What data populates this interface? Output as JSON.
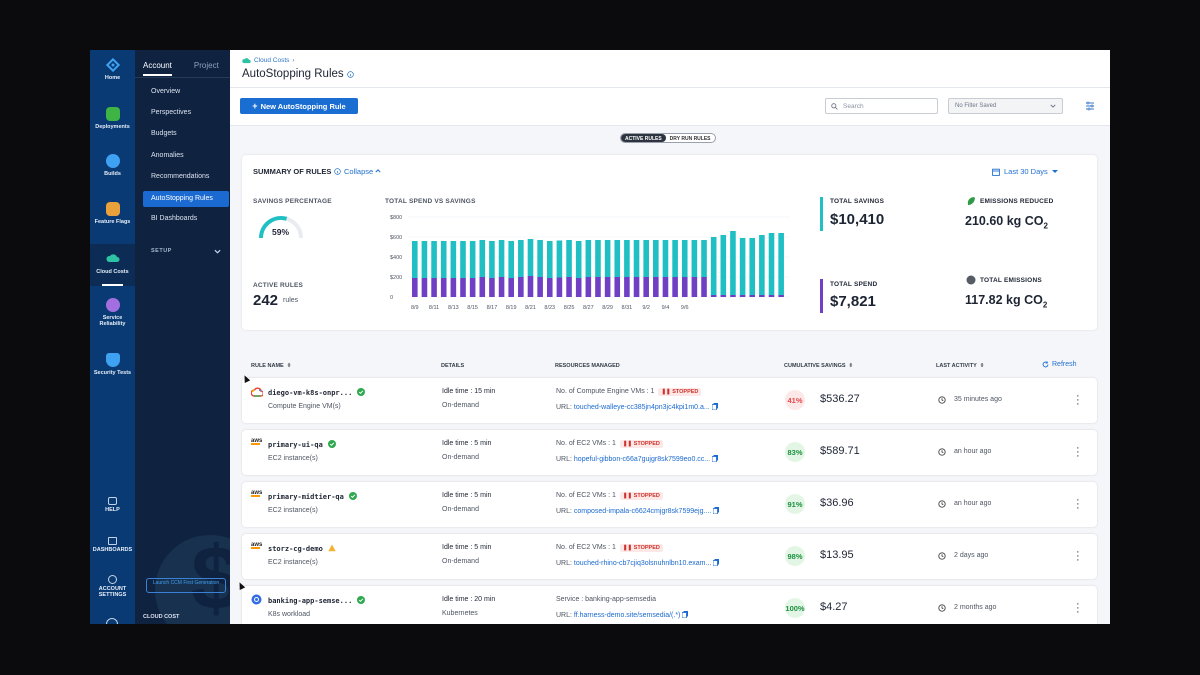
{
  "rail": [
    {
      "label": "Home",
      "icon": "home-icon",
      "color": "#3ea1f1"
    },
    {
      "label": "Deployments",
      "icon": "deployments-icon",
      "color": "#3db443"
    },
    {
      "label": "Builds",
      "icon": "builds-icon",
      "color": "#3ea1f1"
    },
    {
      "label": "Feature Flags",
      "icon": "feature-flags-icon",
      "color": "#e9a13b"
    },
    {
      "label": "Cloud Costs",
      "icon": "cloud-costs-icon",
      "color": "#2dc2a4"
    },
    {
      "label": "Service Reliability",
      "icon": "service-reliability-icon",
      "color": "#a36fe0"
    },
    {
      "label": "Security Tests",
      "icon": "security-tests-icon",
      "color": "#3ea1f1"
    }
  ],
  "rail_bottom": [
    {
      "label": "HELP",
      "icon": "help-icon"
    },
    {
      "label": "DASHBOARDS",
      "icon": "dashboards-icon"
    },
    {
      "label": "ACCOUNT SETTINGS",
      "icon": "account-settings-icon"
    }
  ],
  "nav": {
    "tabs": [
      "Account",
      "Project"
    ],
    "items": [
      "Overview",
      "Perspectives",
      "Budgets",
      "Anomalies",
      "Recommendations",
      "AutoStopping Rules",
      "BI Dashboards"
    ],
    "setup": "SETUP",
    "launch": "Launch CCM First Generation",
    "footer": "CLOUD COST"
  },
  "header": {
    "breadcrumb": "Cloud Costs",
    "title": "AutoStopping Rules"
  },
  "toolbar": {
    "new_rule": "New AutoStopping Rule",
    "search_placeholder": "Search",
    "filter": "No Filter Saved"
  },
  "toggle": [
    "ACTIVE RULES",
    "DRY RUN RULES"
  ],
  "summary": {
    "title": "SUMMARY OF RULES",
    "collapse": "Collapse",
    "range": "Last 30 Days",
    "savings_pct_label": "SAVINGS PERCENTAGE",
    "savings_pct": "59%",
    "savings_fraction": 0.59,
    "active_rules_label": "ACTIVE RULES",
    "active_rules": "242",
    "active_rules_unit": "rules",
    "chart_label": "TOTAL SPEND VS SAVINGS",
    "total_savings_label": "TOTAL SAVINGS",
    "total_savings": "$10,410",
    "total_spend_label": "TOTAL SPEND",
    "total_spend": "$7,821",
    "emissions_reduced_label": "EMISSIONS REDUCED",
    "emissions_reduced": "210.60 kg CO",
    "total_emissions_label": "TOTAL EMISSIONS",
    "total_emissions": "117.82 kg CO",
    "co2_sub": "2",
    "colors": {
      "savings": "#1fbfc4",
      "spend": "#7040c4"
    }
  },
  "chart_data": {
    "type": "bar",
    "stacked": true,
    "yticks": [
      "$800",
      "$600",
      "$400",
      "$200",
      "0"
    ],
    "ylim": [
      0,
      800
    ],
    "xticks": [
      "8/9",
      "8/11",
      "8/13",
      "8/15",
      "8/17",
      "8/19",
      "8/21",
      "8/23",
      "8/25",
      "8/27",
      "8/29",
      "8/31",
      "9/2",
      "9/4",
      "9/6"
    ],
    "series": [
      {
        "values": [
          190,
          190,
          190,
          190,
          190,
          190,
          190,
          200,
          190,
          200,
          190,
          200,
          210,
          200,
          190,
          195,
          200,
          190,
          200,
          200,
          200,
          200,
          200,
          200,
          200,
          200,
          200,
          200,
          200,
          200,
          200,
          20,
          20,
          20,
          20,
          20,
          20,
          20,
          20
        ]
      },
      {
        "values": [
          370,
          370,
          370,
          370,
          370,
          370,
          370,
          370,
          370,
          370,
          370,
          370,
          370,
          370,
          370,
          370,
          370,
          370,
          370,
          370,
          370,
          370,
          370,
          370,
          370,
          370,
          370,
          370,
          370,
          370,
          370,
          580,
          600,
          640,
          570,
          570,
          600,
          620,
          620
        ]
      }
    ]
  },
  "table": {
    "headers": [
      "RULE NAME",
      "DETAILS",
      "RESOURCES MANAGED",
      "CUMULATIVE SAVINGS",
      "LAST ACTIVITY"
    ],
    "refresh": "Refresh",
    "rows": [
      {
        "provider": "gcp",
        "name": "diego-vm-k8s-onpr...",
        "status": "ok",
        "type": "Compute Engine VM(s)",
        "idle": "Idle time : 15 min",
        "mode": "On-demand",
        "resource": "No. of Compute Engine VMs :  1",
        "stopped": "STOPPED",
        "url_label": "URL:",
        "url": "touched-walleye-cc385jn4pn3jc4kpi1m0.a...",
        "pct": "41%",
        "pct_color": "#e5484d",
        "pct_bg": "#fde8e8",
        "amount": "$536.27",
        "activity": "35 minutes ago"
      },
      {
        "provider": "aws",
        "name": "primary-ui-qa",
        "status": "ok",
        "type": "EC2 instance(s)",
        "idle": "Idle time : 5 min",
        "mode": "On-demand",
        "resource": "No. of EC2 VMs :  1",
        "stopped": "STOPPED",
        "url_label": "URL:",
        "url": "hopeful-gibbon-c66a7gujgr8sk7599eo0.cc...",
        "pct": "83%",
        "pct_color": "#1b8f3d",
        "pct_bg": "#e3f6e6",
        "amount": "$589.71",
        "activity": "an hour ago"
      },
      {
        "provider": "aws",
        "name": "primary-midtier-qa",
        "status": "ok",
        "type": "EC2 instance(s)",
        "idle": "Idle time : 5 min",
        "mode": "On-demand",
        "resource": "No. of EC2 VMs :  1",
        "stopped": "STOPPED",
        "url_label": "URL:",
        "url": "composed-impala-c6624cmjgr8sk7599ejg....",
        "pct": "91%",
        "pct_color": "#1b8f3d",
        "pct_bg": "#e3f6e6",
        "amount": "$36.96",
        "activity": "an hour ago"
      },
      {
        "provider": "aws",
        "name": "storz-cg-demo",
        "status": "warn",
        "type": "EC2 instance(s)",
        "idle": "Idle time : 5 min",
        "mode": "On-demand",
        "resource": "No. of EC2 VMs :  1",
        "stopped": "STOPPED",
        "url_label": "URL:",
        "url": "touched-rhino-cb7cjiq3olsnuhnlbn10.exam...",
        "pct": "98%",
        "pct_color": "#1b8f3d",
        "pct_bg": "#e3f6e6",
        "amount": "$13.95",
        "activity": "2 days ago"
      },
      {
        "provider": "k8s",
        "name": "banking-app-semse...",
        "status": "ok",
        "type": "K8s workload",
        "idle": "Idle time : 20 min",
        "mode": "Kubernetes",
        "resource": "Service :  banking-app-semsedia",
        "stopped": "",
        "url_label": "URL:",
        "url": "ff.harness-demo.site/semsedia/(.*)",
        "pct": "100%",
        "pct_color": "#1b8f3d",
        "pct_bg": "#e3f6e6",
        "amount": "$4.27",
        "activity": "2 months ago"
      }
    ]
  }
}
